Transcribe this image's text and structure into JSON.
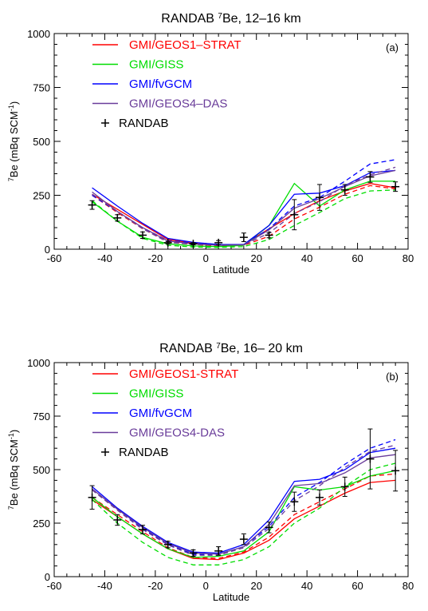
{
  "chart_data": [
    {
      "type": "line",
      "panel_label": "(a)",
      "title": {
        "pre": "RANDAB ",
        "sup": "7",
        "post": "Be, 12–16 km"
      },
      "xlabel": "Latitude",
      "ylabel": {
        "sup": "7",
        "main": "Be (mBq SCM",
        "sup2": "-1",
        "close": ")"
      },
      "xlim": [
        -60,
        80
      ],
      "ylim": [
        0,
        1000
      ],
      "xticks": [
        "-60",
        "-40",
        "-20",
        "0",
        "20",
        "40",
        "60",
        "80"
      ],
      "yticks": [
        "0",
        "250",
        "500",
        "750",
        "1000"
      ],
      "x": [
        -45,
        -35,
        -25,
        -15,
        -5,
        5,
        15,
        25,
        35,
        45,
        55,
        65,
        75
      ],
      "legend": {
        "position": "top-left"
      },
      "series": [
        {
          "name": "GMI/GEOS1–STRAT",
          "color": "#ff0000",
          "solid": [
            255,
            185,
            115,
            45,
            28,
            22,
            22,
            95,
            165,
            225,
            270,
            305,
            285
          ],
          "dashed": [
            250,
            170,
            95,
            35,
            22,
            15,
            18,
            60,
            140,
            195,
            255,
            295,
            280
          ]
        },
        {
          "name": "GMI/GISS",
          "color": "#00dd00",
          "solid": [
            220,
            130,
            55,
            25,
            15,
            12,
            18,
            110,
            305,
            200,
            275,
            315,
            315
          ],
          "dashed": [
            225,
            130,
            50,
            18,
            10,
            8,
            12,
            45,
            110,
            170,
            235,
            270,
            275
          ]
        },
        {
          "name": "GMI/fvGCM",
          "color": "#0000ff",
          "solid": [
            285,
            200,
            120,
            50,
            32,
            22,
            22,
            110,
            255,
            260,
            295,
            355,
            365
          ],
          "dashed": [
            250,
            175,
            100,
            40,
            28,
            22,
            22,
            95,
            200,
            240,
            315,
            395,
            415
          ]
        },
        {
          "name": "GMI/GEOS4–DAS",
          "color": "#6a3d9a",
          "solid": [
            265,
            175,
            100,
            38,
            25,
            18,
            20,
            90,
            190,
            235,
            290,
            340,
            365
          ],
          "dashed": [
            255,
            175,
            95,
            32,
            22,
            18,
            20,
            75,
            165,
            220,
            295,
            345,
            380
          ]
        }
      ],
      "observations": {
        "name": "RANDAB",
        "y": [
          205,
          145,
          65,
          30,
          25,
          30,
          55,
          65,
          160,
          240,
          275,
          335,
          290
        ],
        "err": [
          20,
          15,
          15,
          6,
          5,
          10,
          20,
          12,
          70,
          60,
          25,
          25,
          22
        ]
      }
    },
    {
      "type": "line",
      "panel_label": "(b)",
      "title": {
        "pre": "RANDAB ",
        "sup": "7",
        "post": "Be, 16– 20 km"
      },
      "xlabel": "Latitude",
      "ylabel": {
        "sup": "7",
        "main": "Be (mBq SCM",
        "sup2": "-1",
        "close": ")"
      },
      "xlim": [
        -60,
        80
      ],
      "ylim": [
        0,
        1000
      ],
      "xticks": [
        "-60",
        "-40",
        "-20",
        "0",
        "20",
        "40",
        "60",
        "80"
      ],
      "yticks": [
        "0",
        "250",
        "500",
        "750",
        "1000"
      ],
      "x": [
        -45,
        -35,
        -25,
        -15,
        -5,
        5,
        15,
        25,
        35,
        45,
        55,
        65,
        75
      ],
      "legend": {
        "position": "top-left"
      },
      "series": [
        {
          "name": "GMI/GEOS1-STRAT",
          "color": "#ff0000",
          "solid": [
            360,
            280,
            200,
            130,
            85,
            80,
            110,
            170,
            270,
            330,
            390,
            440,
            450
          ],
          "dashed": [
            370,
            290,
            210,
            135,
            90,
            85,
            115,
            185,
            290,
            350,
            410,
            470,
            480
          ]
        },
        {
          "name": "GMI/GISS",
          "color": "#00dd00",
          "solid": [
            370,
            280,
            200,
            130,
            90,
            95,
            120,
            210,
            420,
            405,
            420,
            470,
            495
          ],
          "dashed": [
            360,
            250,
            160,
            90,
            55,
            55,
            80,
            140,
            250,
            320,
            420,
            500,
            530
          ]
        },
        {
          "name": "GMI/fvGCM",
          "color": "#0000ff",
          "solid": [
            420,
            320,
            235,
            160,
            115,
            110,
            150,
            265,
            445,
            455,
            500,
            580,
            600
          ],
          "dashed": [
            410,
            315,
            225,
            150,
            105,
            105,
            140,
            235,
            370,
            440,
            525,
            600,
            640
          ]
        },
        {
          "name": "GMI/GEOS4-DAS",
          "color": "#6a3d9a",
          "solid": [
            410,
            315,
            230,
            155,
            110,
            105,
            140,
            245,
            425,
            435,
            485,
            555,
            570
          ],
          "dashed": [
            405,
            310,
            220,
            148,
            100,
            100,
            135,
            225,
            355,
            425,
            510,
            585,
            615
          ]
        }
      ],
      "observations": {
        "name": "RANDAB",
        "y": [
          370,
          265,
          220,
          150,
          110,
          120,
          175,
          230,
          350,
          370,
          420,
          550,
          495
        ],
        "err": [
          55,
          25,
          20,
          15,
          15,
          20,
          25,
          25,
          45,
          35,
          45,
          140,
          95
        ]
      }
    }
  ]
}
